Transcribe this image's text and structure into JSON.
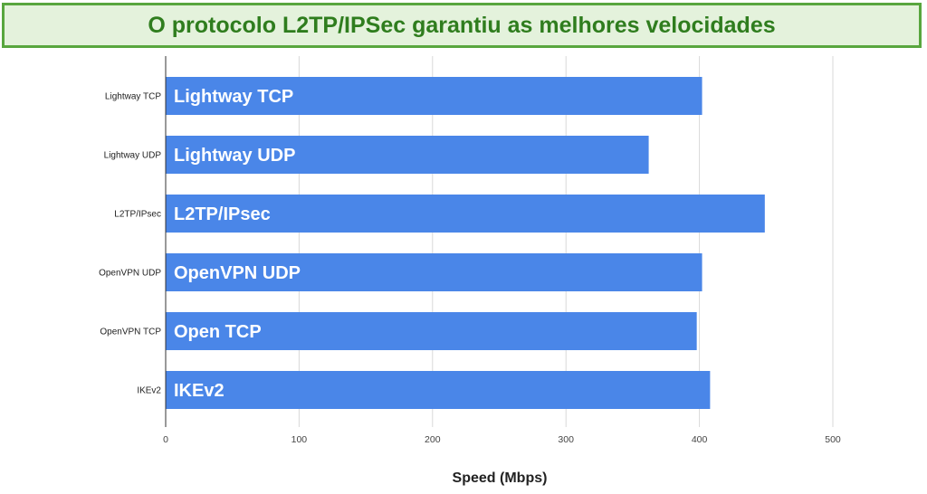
{
  "banner": {
    "title": "O protocolo L2TP/IPSec garantiu as melhores velocidades"
  },
  "colors": {
    "bar": "#4a86e8",
    "grid": "#d9d9d9",
    "axis": "#333333",
    "banner_bg": "#e4f2dc",
    "banner_border": "#58a63e",
    "banner_text": "#2f7d1e"
  },
  "chart_data": {
    "type": "bar",
    "orientation": "horizontal",
    "title": "O protocolo L2TP/IPSec garantiu as melhores velocidades",
    "xlabel": "Speed (Mbps)",
    "ylabel": "",
    "categories": [
      "Lightway TCP",
      "Lightway UDP",
      "L2TP/IPsec",
      "OpenVPN UDP",
      "OpenVPN TCP",
      "IKEv2"
    ],
    "bar_labels": [
      "Lightway TCP",
      "Lightway UDP",
      "L2TP/IPsec",
      "OpenVPN UDP",
      "Open TCP",
      "IKEv2"
    ],
    "values": [
      402,
      362,
      449,
      402,
      398,
      408
    ],
    "xlim": [
      0,
      500
    ],
    "xticks": [
      0,
      100,
      200,
      300,
      400,
      500
    ],
    "grid": true,
    "legend": "none"
  }
}
